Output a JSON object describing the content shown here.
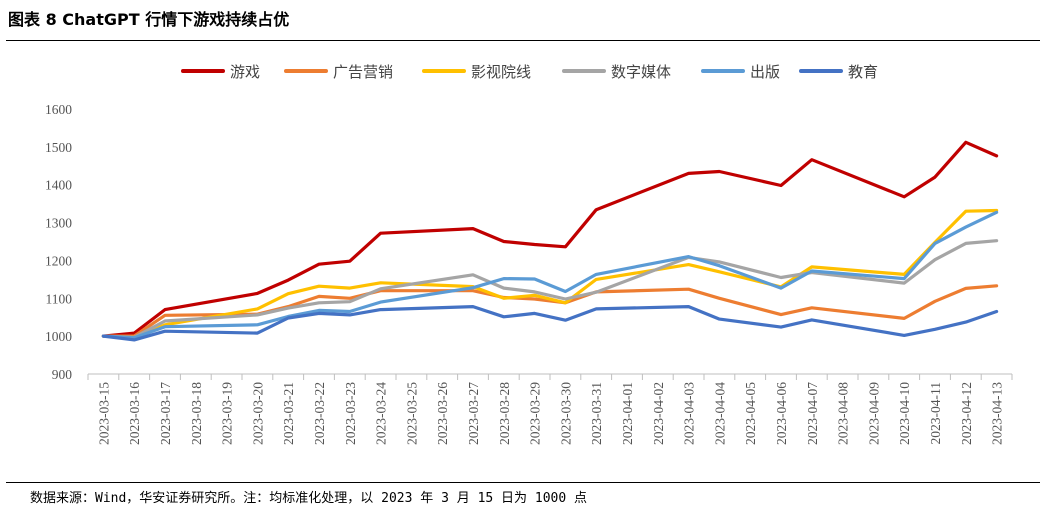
{
  "header": {
    "title": "图表 8 ChatGPT 行情下游戏持续占优"
  },
  "footer": {
    "source": "数据来源：Wind，华安证券研究所。注：均标准化处理，以 2023 年 3 月 15 日为 1000 点"
  },
  "chart_data": {
    "type": "line",
    "title": "",
    "xlabel": "",
    "ylabel": "",
    "ylim": [
      900,
      1600
    ],
    "yticks": [
      900,
      1000,
      1100,
      1200,
      1300,
      1400,
      1500,
      1600
    ],
    "grid": false,
    "legend_position": "top",
    "categories": [
      "2023-03-15",
      "2023-03-16",
      "2023-03-17",
      "2023-03-18",
      "2023-03-19",
      "2023-03-20",
      "2023-03-21",
      "2023-03-22",
      "2023-03-23",
      "2023-03-24",
      "2023-03-25",
      "2023-03-26",
      "2023-03-27",
      "2023-03-28",
      "2023-03-29",
      "2023-03-30",
      "2023-03-31",
      "2023-04-01",
      "2023-04-02",
      "2023-04-03",
      "2023-04-04",
      "2023-04-05",
      "2023-04-06",
      "2023-04-07",
      "2023-04-08",
      "2023-04-09",
      "2023-04-10",
      "2023-04-11",
      "2023-04-12",
      "2023-04-13"
    ],
    "series": [
      {
        "name": "游戏",
        "color": "#C00000",
        "values": [
          1000,
          1008,
          1070,
          null,
          null,
          1113,
          1148,
          1190,
          1198,
          1272,
          null,
          null,
          1284,
          1250,
          1242,
          1236,
          1334,
          null,
          null,
          1430,
          1435,
          null,
          1398,
          1466,
          null,
          null,
          1368,
          1420,
          1512,
          1476
        ]
      },
      {
        "name": "广告营销",
        "color": "#ED7D31",
        "values": [
          1000,
          1000,
          1055,
          null,
          null,
          1058,
          1078,
          1105,
          1100,
          1120,
          null,
          null,
          1120,
          1102,
          1098,
          1088,
          1117,
          null,
          null,
          1124,
          1100,
          null,
          1057,
          1075,
          null,
          null,
          1047,
          1092,
          1126,
          1133
        ]
      },
      {
        "name": "影视院线",
        "color": "#FFC000",
        "values": [
          1000,
          997,
          1030,
          null,
          null,
          1072,
          1112,
          1132,
          1127,
          1141,
          null,
          null,
          1131,
          1100,
          1108,
          1088,
          1150,
          null,
          null,
          1189,
          1170,
          null,
          1130,
          1183,
          null,
          null,
          1163,
          1248,
          1330,
          1332
        ]
      },
      {
        "name": "数字媒体",
        "color": "#A5A5A5",
        "values": [
          1000,
          997,
          1040,
          null,
          null,
          1056,
          1074,
          1088,
          1091,
          1125,
          null,
          null,
          1162,
          1127,
          1117,
          1098,
          1116,
          null,
          null,
          1208,
          1196,
          null,
          1155,
          1168,
          null,
          null,
          1140,
          1202,
          1245,
          1252
        ]
      },
      {
        "name": "出版",
        "color": "#5B9BD5",
        "values": [
          1000,
          996,
          1025,
          null,
          null,
          1030,
          1052,
          1068,
          1065,
          1090,
          null,
          null,
          1128,
          1152,
          1151,
          1118,
          1163,
          null,
          null,
          1210,
          1186,
          null,
          1127,
          1172,
          null,
          null,
          1152,
          1245,
          1288,
          1327
        ]
      },
      {
        "name": "教育",
        "color": "#4472C4",
        "values": [
          1000,
          990,
          1013,
          null,
          null,
          1008,
          1048,
          1060,
          1056,
          1070,
          null,
          null,
          1078,
          1051,
          1060,
          1042,
          1072,
          null,
          null,
          1078,
          1045,
          null,
          1024,
          1043,
          null,
          null,
          1002,
          1018,
          1037,
          1065
        ]
      }
    ]
  }
}
